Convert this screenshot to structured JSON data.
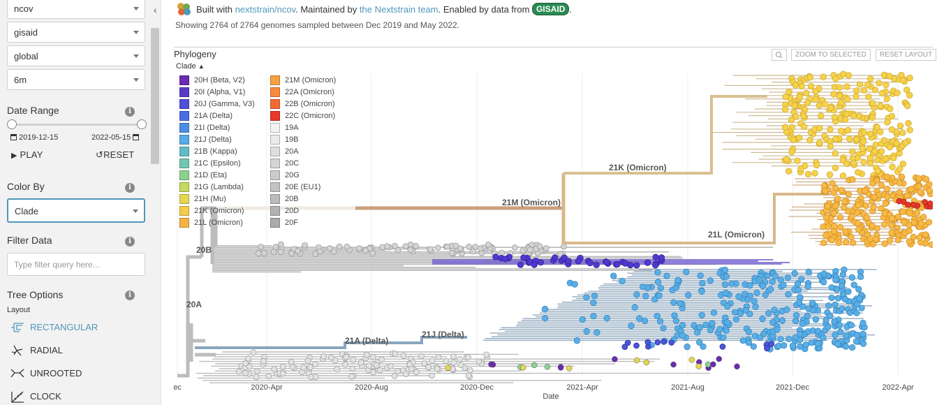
{
  "sidebar": {
    "dataset_selects": [
      "ncov",
      "gisaid",
      "global",
      "6m"
    ],
    "date_range": {
      "title": "Date Range",
      "start": "2019-12-15",
      "end": "2022-05-15",
      "play_label": "PLAY",
      "reset_label": "RESET"
    },
    "color_by": {
      "title": "Color By",
      "value": "Clade"
    },
    "filter": {
      "title": "Filter Data",
      "placeholder": "Type filter query here..."
    },
    "tree_options": {
      "title": "Tree Options",
      "layout_label": "Layout",
      "layouts": [
        "RECTANGULAR",
        "RADIAL",
        "UNROOTED",
        "CLOCK"
      ],
      "selected_layout": "RECTANGULAR"
    }
  },
  "header": {
    "byline_prefix": "Built with ",
    "byline_link1": "nextstrain/ncov",
    "byline_mid": ". Maintained by ",
    "byline_link2": "the Nextstrain team",
    "byline_mid2": ". Enabled by data from ",
    "byline_badge": "GISAID",
    "byline_suffix": ".",
    "summary": "Showing 2764 of 2764 genomes sampled between Dec 2019 and May 2022."
  },
  "phylogeny": {
    "title": "Phylogeny",
    "zoom_to_selected": "ZOOM TO SELECTED",
    "reset_layout": "RESET LAYOUT",
    "legend_title": "Clade",
    "legend": [
      {
        "label": "20H (Beta, V2)",
        "color": "#6a2bb0"
      },
      {
        "label": "20I (Alpha, V1)",
        "color": "#5a3bc8"
      },
      {
        "label": "20J (Gamma, V3)",
        "color": "#4f4fd8"
      },
      {
        "label": "21A (Delta)",
        "color": "#4a6ee0"
      },
      {
        "label": "21I (Delta)",
        "color": "#4c8ee6"
      },
      {
        "label": "21J (Delta)",
        "color": "#55abe4"
      },
      {
        "label": "21B (Kappa)",
        "color": "#62bcc8"
      },
      {
        "label": "21C (Epsilon)",
        "color": "#6fc7b0"
      },
      {
        "label": "21D (Eta)",
        "color": "#8cd190"
      },
      {
        "label": "21G (Lambda)",
        "color": "#c6d95e"
      },
      {
        "label": "21H (Mu)",
        "color": "#e4d650"
      },
      {
        "label": "21K (Omicron)",
        "color": "#f3cc4a"
      },
      {
        "label": "21L (Omicron)",
        "color": "#f6b340"
      },
      {
        "label": "21M (Omicron)",
        "color": "#f8a040"
      },
      {
        "label": "22A (Omicron)",
        "color": "#f78a3c"
      },
      {
        "label": "22B (Omicron)",
        "color": "#f56a34"
      },
      {
        "label": "22C (Omicron)",
        "color": "#e8382a"
      },
      {
        "label": "19A",
        "color": "#f3f3f3"
      },
      {
        "label": "19B",
        "color": "#eaeaea"
      },
      {
        "label": "20A",
        "color": "#dedede"
      },
      {
        "label": "20C",
        "color": "#d4d4d4"
      },
      {
        "label": "20G",
        "color": "#cbcbcb"
      },
      {
        "label": "20E (EU1)",
        "color": "#c3c3c3"
      },
      {
        "label": "20B",
        "color": "#bbbbbb"
      },
      {
        "label": "20D",
        "color": "#b3b3b3"
      },
      {
        "label": "20F",
        "color": "#ababab"
      }
    ],
    "branch_labels": [
      "21K (Omicron)",
      "21M (Omicron)",
      "21L (Omicron)",
      "20B",
      "20A",
      "21A (Delta)",
      "21J (Delta)"
    ],
    "axis": {
      "title": "Date",
      "ticks": [
        "ec",
        "2020-Apr",
        "2020-Aug",
        "2020-Dec",
        "2021-Apr",
        "2021-Aug",
        "2021-Dec",
        "2022-Apr"
      ]
    }
  }
}
